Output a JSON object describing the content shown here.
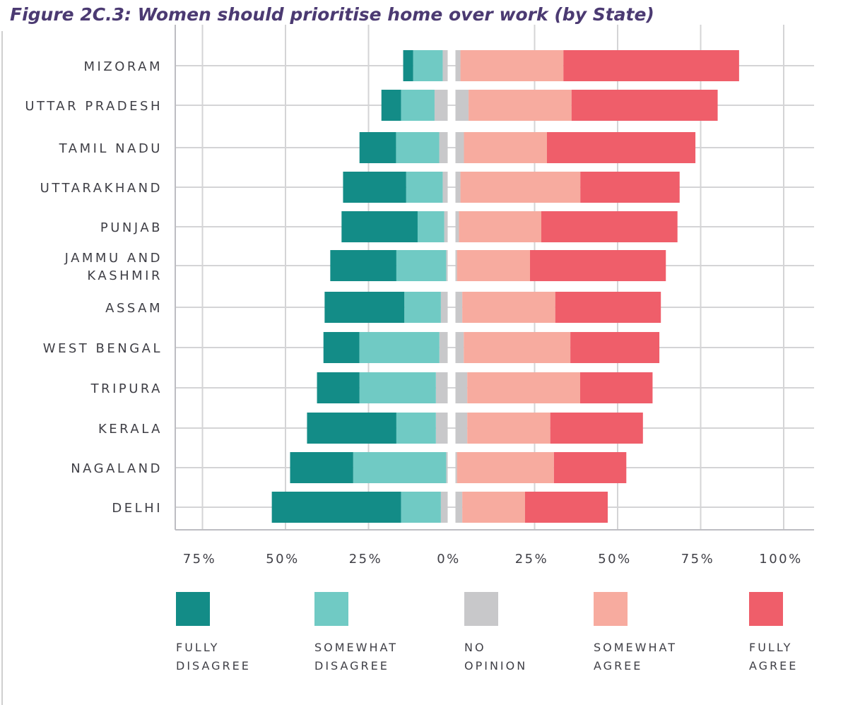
{
  "title": "Figure 2C.3: Women should prioritise home over work (by State)",
  "chart_data": {
    "type": "bar",
    "orientation": "horizontal",
    "stacking": "diverging",
    "title": "Figure 2C.3: Women should prioritise home over work (by State)",
    "categories": [
      "MIZORAM",
      "UTTAR PRADESH",
      "TAMIL NADU",
      "UTTARAKHAND",
      "PUNJAB",
      "JAMMU AND KASHMIR",
      "ASSAM",
      "WEST BENGAL",
      "TRIPURA",
      "KERALA",
      "NAGALAND",
      "DELHI"
    ],
    "series": [
      {
        "name": "FULLY DISAGREE",
        "side": "negative",
        "color": "#138c87",
        "values": [
          3.0,
          5.9,
          11.0,
          19.0,
          22.9,
          19.9,
          24.0,
          10.8,
          12.8,
          26.9,
          19.0,
          38.9
        ]
      },
      {
        "name": "SOMEWHAT DISAGREE",
        "side": "negative",
        "color": "#70cac4",
        "values": [
          8.9,
          10.1,
          13.0,
          11.0,
          8.0,
          15.0,
          11.0,
          24.1,
          23.0,
          11.9,
          28.0,
          12.0
        ]
      },
      {
        "name": "NO OPINION",
        "side": "center",
        "color": "#c8c8ca",
        "values": [
          3.0,
          7.9,
          5.1,
          3.0,
          2.1,
          0.9,
          4.1,
          5.0,
          7.1,
          7.1,
          0.9,
          4.1
        ]
      },
      {
        "name": "SOMEWHAT AGREE",
        "side": "positive",
        "color": "#f7ab9f",
        "values": [
          31.0,
          31.0,
          25.0,
          36.1,
          24.8,
          22.0,
          28.0,
          32.1,
          34.0,
          25.0,
          29.2,
          18.9
        ]
      },
      {
        "name": "FULLY AGREE",
        "side": "positive",
        "color": "#ef5e6a",
        "values": [
          52.9,
          44.0,
          44.7,
          29.9,
          41.0,
          40.9,
          31.8,
          26.8,
          21.8,
          27.9,
          21.8,
          24.9
        ]
      }
    ],
    "xticks": [
      -75,
      -50,
      -25,
      0,
      25,
      50,
      75,
      100
    ],
    "xtick_labels": [
      "75%",
      "50%",
      "25%",
      "0%",
      "25%",
      "50%",
      "75%",
      "100%"
    ],
    "xlim": [
      -85,
      105
    ],
    "grid": true,
    "legend": "bottom",
    "xlabel": "",
    "ylabel": ""
  }
}
